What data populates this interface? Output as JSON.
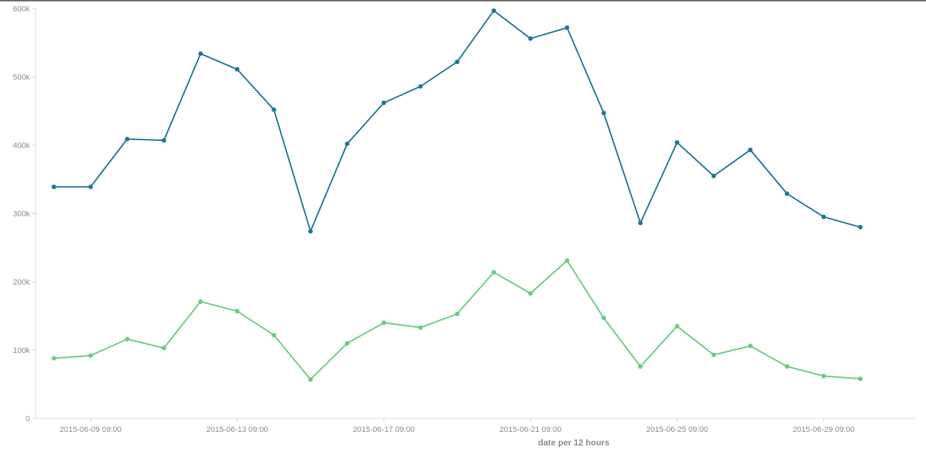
{
  "chart_data": {
    "type": "line",
    "title": "",
    "xlabel": "date per 12 hours",
    "ylabel": "",
    "ylim": [
      0,
      600000
    ],
    "y_ticks": [
      {
        "value": 0,
        "label": "0"
      },
      {
        "value": 100000,
        "label": "100k"
      },
      {
        "value": 200000,
        "label": "200k"
      },
      {
        "value": 300000,
        "label": "300k"
      },
      {
        "value": 400000,
        "label": "400k"
      },
      {
        "value": 500000,
        "label": "500k"
      },
      {
        "value": 600000,
        "label": "600k"
      }
    ],
    "x_ticks": [
      {
        "value": "2015-06-09 09:00",
        "label": "2015-06-09 09:00"
      },
      {
        "value": "2015-06-13 09:00",
        "label": "2015-06-13 09:00"
      },
      {
        "value": "2015-06-17 09:00",
        "label": "2015-06-17 09:00"
      },
      {
        "value": "2015-06-21 09:00",
        "label": "2015-06-21 09:00"
      },
      {
        "value": "2015-06-25 09:00",
        "label": "2015-06-25 09:00"
      },
      {
        "value": "2015-06-29 09:00",
        "label": "2015-06-29 09:00"
      }
    ],
    "xlim": [
      "2015-06-07 21:00",
      "2015-07-01 21:00"
    ],
    "grid": false,
    "x": [
      "2015-06-08 09:00",
      "2015-06-09 09:00",
      "2015-06-10 09:00",
      "2015-06-11 09:00",
      "2015-06-12 09:00",
      "2015-06-13 09:00",
      "2015-06-14 09:00",
      "2015-06-15 09:00",
      "2015-06-16 09:00",
      "2015-06-17 09:00",
      "2015-06-18 09:00",
      "2015-06-19 09:00",
      "2015-06-20 09:00",
      "2015-06-21 09:00",
      "2015-06-22 09:00",
      "2015-06-23 09:00",
      "2015-06-24 09:00",
      "2015-06-25 09:00",
      "2015-06-26 09:00",
      "2015-06-27 09:00",
      "2015-06-28 09:00",
      "2015-06-29 09:00",
      "2015-06-30 09:00"
    ],
    "series": [
      {
        "color": "#1f7891",
        "values": [
          339000,
          339000,
          409000,
          407000,
          534000,
          511000,
          452000,
          274000,
          402000,
          462000,
          486000,
          522000,
          597000,
          556000,
          572000,
          447000,
          286000,
          404000,
          355000,
          393000,
          329000,
          295000,
          280000
        ]
      },
      {
        "color": "#6acb80",
        "values": [
          88000,
          92000,
          116000,
          103000,
          171000,
          157000,
          122000,
          57000,
          110000,
          140000,
          133000,
          153000,
          214000,
          183000,
          231000,
          147000,
          76000,
          135000,
          93000,
          106000,
          76000,
          62000,
          58000
        ]
      }
    ]
  }
}
